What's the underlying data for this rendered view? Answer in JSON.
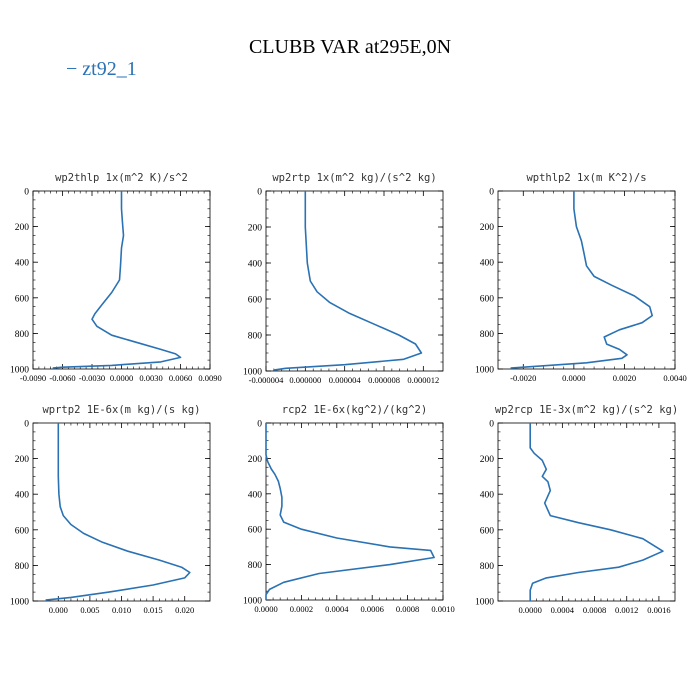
{
  "figure": {
    "title": "CLUBB VAR at295E,0N",
    "legend_label": "− zt92_1",
    "line_color": "#2a72b4"
  },
  "chart_data": [
    {
      "type": "line",
      "title": "wp2thlp   1x(m^2 K)/s^2",
      "xlim": [
        -0.009,
        0.009
      ],
      "xticks": [
        -0.009,
        -0.006,
        -0.003,
        0.0,
        0.003,
        0.006,
        0.009
      ],
      "xticklabels": [
        "-0.0090",
        "-0.0060",
        "-0.0030",
        "0.0000",
        "0.0030",
        "0.0060",
        "0.0090"
      ],
      "ylim": [
        1000,
        0
      ],
      "yticks": [
        0,
        200,
        400,
        600,
        800,
        1000
      ],
      "series": [
        {
          "x": [
            0.0,
            0.0,
            0.0001,
            0.0002,
            0.0,
            -0.0001,
            -0.0002,
            -0.001,
            -0.002,
            -0.0027,
            -0.003,
            -0.0025,
            -0.001,
            0.0015,
            0.004,
            0.0055,
            0.006,
            0.004,
            -0.001,
            -0.006,
            -0.007
          ],
          "y": [
            0,
            100,
            180,
            250,
            320,
            420,
            500,
            570,
            640,
            690,
            720,
            760,
            810,
            850,
            890,
            915,
            935,
            960,
            980,
            990,
            995
          ]
        }
      ]
    },
    {
      "type": "line",
      "title": "wp2rtp   1x(m^2 kg)/(s^2 kg)",
      "xlim": [
        -4e-06,
        1.4e-05
      ],
      "xticks": [
        -4e-06,
        0.0,
        4e-06,
        8e-06,
        1.2e-05
      ],
      "xticklabels": [
        "-0.000004",
        "0.000000",
        "0.000004",
        "0.000008",
        "0.000012"
      ],
      "ylim": [
        1000,
        0
      ],
      "yticks": [
        0,
        200,
        400,
        600,
        800,
        1000
      ],
      "series": [
        {
          "x": [
            0.0,
            0.0,
            0.0,
            1e-07,
            2e-07,
            5e-07,
            1.2e-06,
            2.5e-06,
            4.5e-06,
            7e-06,
            9.5e-06,
            1.12e-05,
            1.18e-05,
            1e-05,
            4e-06,
            -2e-06,
            -3.2e-06
          ],
          "y": [
            0,
            100,
            200,
            300,
            400,
            500,
            560,
            620,
            680,
            740,
            800,
            850,
            900,
            935,
            965,
            985,
            995
          ]
        }
      ]
    },
    {
      "type": "line",
      "title": "wpthlp2   1x(m K^2)/s",
      "xlim": [
        -0.003,
        0.004
      ],
      "xticks": [
        -0.002,
        0.0,
        0.002,
        0.004
      ],
      "xticklabels": [
        "-0.0020",
        "0.0000",
        "0.0020",
        "0.0040"
      ],
      "ylim": [
        1000,
        0
      ],
      "yticks": [
        0,
        200,
        400,
        600,
        800,
        1000
      ],
      "series": [
        {
          "x": [
            0.0,
            0.0,
            0.0001,
            0.0003,
            0.0004,
            0.0005,
            0.0008,
            0.0015,
            0.0024,
            0.003,
            0.0031,
            0.0027,
            0.0018,
            0.0012,
            0.0013,
            0.0018,
            0.0021,
            0.0019,
            0.0005,
            -0.0015,
            -0.0025
          ],
          "y": [
            0,
            100,
            200,
            280,
            350,
            420,
            480,
            530,
            590,
            650,
            700,
            740,
            780,
            820,
            860,
            890,
            920,
            940,
            965,
            985,
            995
          ]
        }
      ]
    },
    {
      "type": "line",
      "title": "wprtp2   1E-6x(m kg)/(s kg)",
      "xlim": [
        -0.004,
        0.024
      ],
      "xticks": [
        0.0,
        0.005,
        0.01,
        0.015,
        0.02
      ],
      "xticklabels": [
        "0.000",
        "0.005",
        "0.010",
        "0.015",
        "0.020"
      ],
      "ylim": [
        1000,
        0
      ],
      "yticks": [
        0,
        200,
        400,
        600,
        800,
        1000
      ],
      "series": [
        {
          "x": [
            0.0,
            0.0,
            0.0,
            0.0,
            0.0001,
            0.0003,
            0.0008,
            0.002,
            0.004,
            0.007,
            0.011,
            0.016,
            0.0195,
            0.0208,
            0.02,
            0.015,
            0.008,
            0.002,
            -0.002
          ],
          "y": [
            0,
            100,
            200,
            300,
            400,
            470,
            520,
            570,
            620,
            670,
            720,
            770,
            810,
            840,
            870,
            910,
            950,
            980,
            995
          ]
        }
      ]
    },
    {
      "type": "line",
      "title": "rcp2   1E-6x(kg^2)/(kg^2)",
      "xlim": [
        0.0,
        0.001
      ],
      "xticks": [
        0.0,
        0.0002,
        0.0004,
        0.0006,
        0.0008,
        0.001
      ],
      "xticklabels": [
        "0.0000",
        "0.0002",
        "0.0004",
        "0.0006",
        "0.0008",
        "0.0010"
      ],
      "ylim": [
        1000,
        0
      ],
      "yticks": [
        0,
        200,
        400,
        600,
        800,
        1000
      ],
      "series": [
        {
          "x": [
            0.0,
            0.0,
            1e-05,
            3e-05,
            5e-05,
            7e-05,
            8e-05,
            9e-05,
            9e-05,
            8e-05,
            0.0001,
            0.0002,
            0.0004,
            0.0007,
            0.00093,
            0.00095,
            0.0007,
            0.0003,
            0.0001,
            2e-05,
            0.0,
            0.0
          ],
          "y": [
            0,
            180,
            220,
            260,
            290,
            330,
            370,
            420,
            470,
            520,
            560,
            600,
            650,
            700,
            720,
            760,
            800,
            850,
            900,
            940,
            970,
            1000
          ]
        }
      ]
    },
    {
      "type": "line",
      "title": "wp2rcp   1E-3x(m^2 kg)/(s^2 kg)",
      "xlim": [
        -0.0004,
        0.0018
      ],
      "xticks": [
        0.0,
        0.0004,
        0.0008,
        0.0012,
        0.0016
      ],
      "xticklabels": [
        "0.0000",
        "0.0004",
        "0.0008",
        "0.0012",
        "0.0016"
      ],
      "ylim": [
        1000,
        0
      ],
      "yticks": [
        0,
        200,
        400,
        600,
        800,
        1000
      ],
      "series": [
        {
          "x": [
            0.0,
            0.0,
            0.0,
            5e-05,
            0.00015,
            0.0002,
            0.00015,
            0.00022,
            0.00025,
            0.00018,
            0.00025,
            0.0006,
            0.001,
            0.0014,
            0.00165,
            0.0014,
            0.0011,
            0.0006,
            0.0002,
            3e-05,
            0.0,
            0.0
          ],
          "y": [
            0,
            100,
            140,
            170,
            210,
            260,
            300,
            330,
            380,
            450,
            520,
            560,
            600,
            650,
            720,
            770,
            810,
            840,
            870,
            900,
            940,
            1000
          ]
        }
      ]
    }
  ]
}
